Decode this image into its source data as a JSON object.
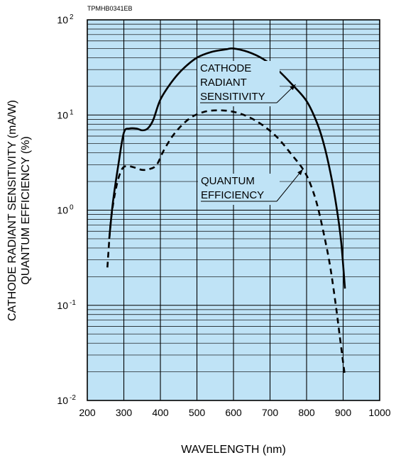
{
  "chart_data": {
    "type": "line",
    "figure_code": "TPMHB0341EB",
    "xlabel": "WAVELENGTH (nm)",
    "ylabel_lines": [
      "CATHODE RADIANT SENSITIVITY (mA/W)",
      "QUANTUM EFFICIENCY (%)"
    ],
    "x_ticks": [
      "200",
      "300",
      "400",
      "500",
      "600",
      "700",
      "800",
      "900",
      "1000"
    ],
    "xlim": [
      200,
      1000
    ],
    "y_scale": "log",
    "ylim": [
      0.01,
      100
    ],
    "y_ticks": [
      {
        "value": 100,
        "base": "10",
        "exp": "2"
      },
      {
        "value": 10,
        "base": "10",
        "exp": "1"
      },
      {
        "value": 1,
        "base": "10",
        "exp": "0"
      },
      {
        "value": 0.1,
        "base": "10",
        "exp": "-1"
      },
      {
        "value": 0.01,
        "base": "10",
        "exp": "-2"
      }
    ],
    "grid": true,
    "plot_background": "#bfe3f6",
    "series": [
      {
        "name_lines": [
          "CATHODE",
          "RADIANT",
          "SENSITIVITY"
        ],
        "style": "solid",
        "color": "#000000",
        "x": [
          260,
          270,
          285,
          300,
          315,
          335,
          350,
          365,
          380,
          400,
          430,
          460,
          500,
          540,
          580,
          600,
          640,
          680,
          720,
          760,
          800,
          830,
          850,
          870,
          885,
          895,
          905
        ],
        "y": [
          0.5,
          1.2,
          3.0,
          6.5,
          7.2,
          7.2,
          6.9,
          7.2,
          8.8,
          14.5,
          22,
          30,
          40,
          46,
          49,
          50,
          46,
          39,
          30,
          21,
          14,
          8,
          4.5,
          2.0,
          0.9,
          0.45,
          0.15
        ]
      },
      {
        "name_lines": [
          "QUANTUM",
          "EFFICIENCY"
        ],
        "style": "dashed",
        "color": "#000000",
        "x": [
          255,
          265,
          280,
          295,
          310,
          330,
          350,
          370,
          390,
          410,
          440,
          480,
          520,
          560,
          600,
          640,
          680,
          720,
          760,
          790,
          810,
          830,
          850,
          865,
          880,
          890,
          900,
          905
        ],
        "y": [
          0.25,
          0.8,
          1.8,
          2.7,
          2.9,
          2.8,
          2.65,
          2.7,
          3.0,
          4.3,
          6.5,
          9.2,
          10.8,
          11.2,
          10.8,
          9.6,
          7.8,
          5.8,
          3.8,
          2.7,
          1.9,
          1.1,
          0.5,
          0.25,
          0.1,
          0.05,
          0.025,
          0.018
        ]
      }
    ]
  }
}
